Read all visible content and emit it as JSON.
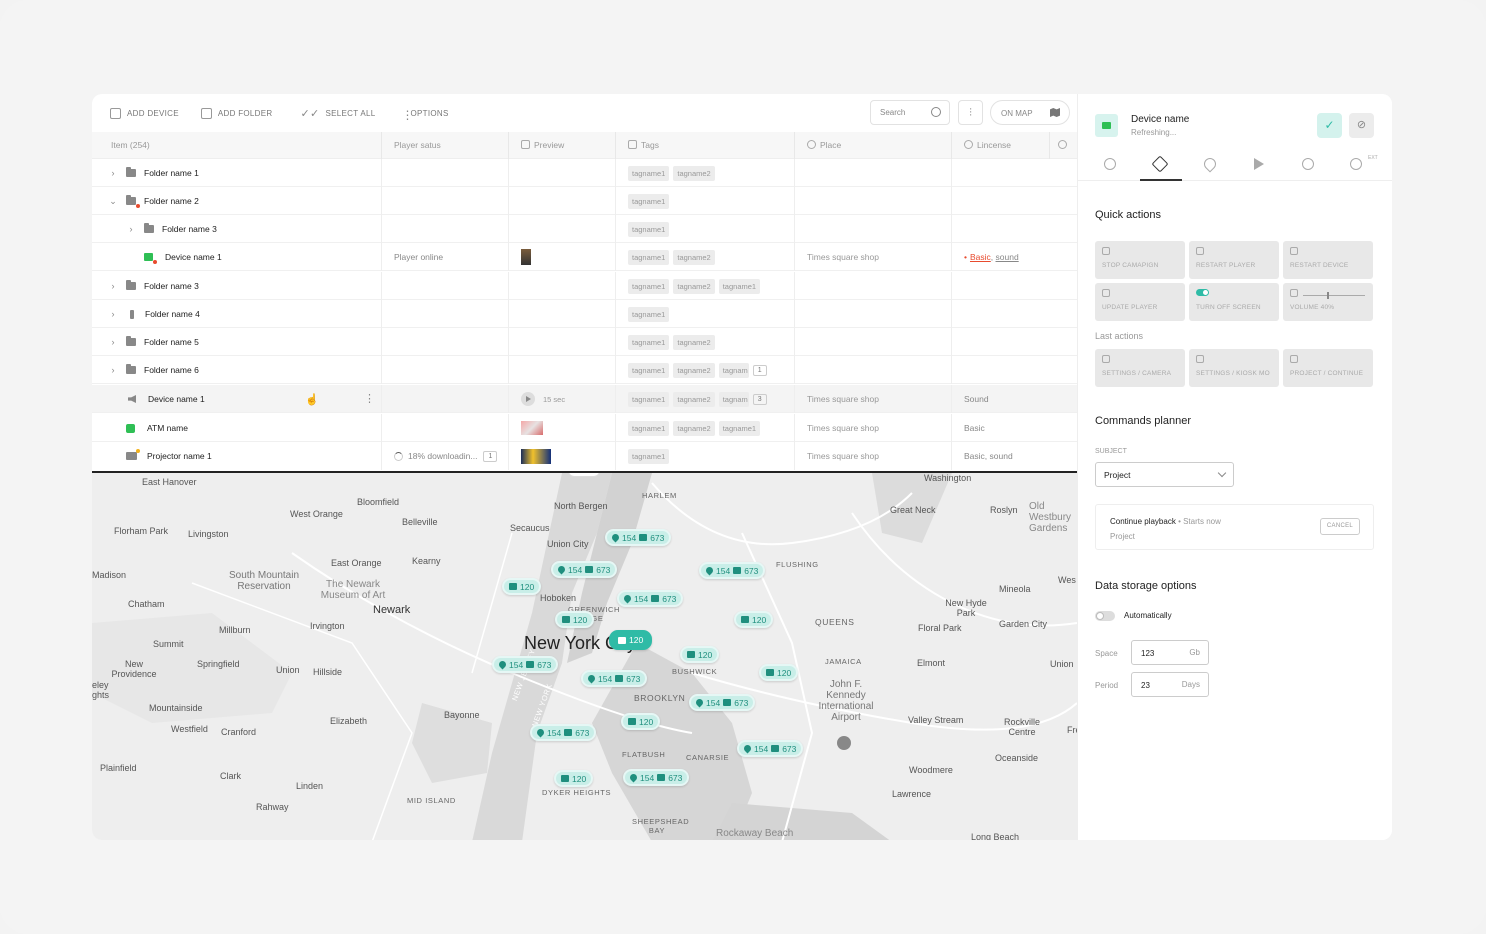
{
  "toolbar": {
    "add_device": "ADD DEVICE",
    "add_folder": "ADD FOLDER",
    "select_all": "SELECT ALL",
    "options": "OPTIONS",
    "search_placeholder": "Search",
    "on_map": "ON MAP"
  },
  "table": {
    "headers": [
      "Item (254)",
      "Player satus",
      "Preview",
      "Tags",
      "Place",
      "Lincense"
    ],
    "rows": [
      {
        "name": "Folder name 1",
        "tags": [
          "tagname1",
          "tagname2"
        ]
      },
      {
        "name": "Folder name 2",
        "tags": [
          "tagname1"
        ]
      },
      {
        "name": "Folder name 3",
        "tags": [
          "tagname1"
        ]
      },
      {
        "name": "Device name 1",
        "status": "Player online",
        "tags": [
          "tagname1",
          "tagname2"
        ],
        "place": "Times square shop",
        "license_a": "Basic",
        "license_b": "sound"
      },
      {
        "name": "Folder name 3",
        "tags": [
          "tagname1",
          "tagname2",
          "tagname1"
        ]
      },
      {
        "name": "Folder name 4",
        "tags": [
          "tagname1"
        ]
      },
      {
        "name": "Folder name 5",
        "tags": [
          "tagname1",
          "tagname2"
        ]
      },
      {
        "name": "Folder name 6",
        "tags": [
          "tagname1",
          "tagname2",
          "tagnam"
        ],
        "count": "1"
      },
      {
        "name": "Device name 1",
        "preview": "15 sec",
        "tags": [
          "tagname1",
          "tagname2",
          "tagnam"
        ],
        "count": "3",
        "place": "Times square shop",
        "license": "Sound"
      },
      {
        "name": "ATM name",
        "tags": [
          "tagname1",
          "tagname2",
          "tagname1"
        ],
        "place": "Times square shop",
        "license": "Basic"
      },
      {
        "name": "Projector name 1",
        "status": "18% downloadin...",
        "status_count": "1",
        "tags": [
          "tagname1"
        ],
        "place": "Times square shop",
        "license": "Basic, sound"
      }
    ]
  },
  "map": {
    "labels": {
      "east_hanover": "East Hanover",
      "bloomfield": "Bloomfield",
      "west_orange": "West Orange",
      "belleville": "Belleville",
      "florham_park": "Florham Park",
      "livingston": "Livingston",
      "madison": "Madison",
      "chatham": "Chatham",
      "east_orange": "East Orange",
      "kearny": "Kearny",
      "south_mountain": "South Mountain Reservation",
      "newark_museum": "The Newark Museum of Art",
      "newark": "Newark",
      "summit": "Summit",
      "millburn": "Millburn",
      "irvington": "Irvington",
      "new_providence": "New Providence",
      "springfield": "Springfield",
      "union": "Union",
      "hillside": "Hillside",
      "mountainside": "Mountainside",
      "elizabeth": "Elizabeth",
      "westfield": "Westfield",
      "cranford": "Cranford",
      "plainfield": "Plainfield",
      "clark": "Clark",
      "linden": "Linden",
      "rahway": "Rahway",
      "north_bergen": "North Bergen",
      "secaucus": "Secaucus",
      "union_city": "Union City",
      "hoboken": "Hoboken",
      "harlem": "HARLEM",
      "new_york": "New York City",
      "bayonne": "Bayonne",
      "brooklyn": "BROOKLYN",
      "queens": "QUEENS",
      "flushing": "FLUSHING",
      "jamaica": "JAMAICA",
      "bushwick": "BUSHWICK",
      "flatbush": "FLATBUSH",
      "canarsie": "CANARSIE",
      "jfk": "John F. Kennedy International Airport",
      "great_neck": "Great Neck",
      "roslyn": "Roslyn",
      "old_westbury": "Old Westbury Gardens",
      "mineola": "Mineola",
      "new_hyde_park": "New Hyde Park",
      "floral_park": "Floral Park",
      "garden_city": "Garden City",
      "elmont": "Elmont",
      "valley_stream": "Valley Stream",
      "rockville_centre": "Rockville Centre",
      "oceanside": "Oceanside",
      "woodmere": "Woodmere",
      "lawrence": "Lawrence",
      "rockaway_beach": "Rockaway Beach",
      "long_beach": "Long Beach",
      "sheepshead_bay": "SHEEPSHEAD BAY",
      "dyker_heights": "DYKER HEIGHTS",
      "mid_island": "MID ISLAND",
      "washington": "Washington",
      "new_jersey": "NEW JERSEY",
      "new_york_state": "NEW YORK",
      "greenwich_village": "GREENWICH VILLAGE",
      "west": "Wes",
      "union_right": "Union",
      "fre": "Fre",
      "ley": "eley ghts"
    },
    "pins": [
      {
        "a": "154",
        "b": "673"
      },
      {
        "a": "154",
        "b": "673"
      },
      {
        "a": "154",
        "b": "673"
      },
      {
        "a": "154",
        "b": "673"
      },
      {
        "b": "120"
      },
      {
        "b": "120"
      },
      {
        "b": "120"
      },
      {
        "b": "120"
      },
      {
        "a": "154",
        "b": "673"
      },
      {
        "b": "120"
      },
      {
        "a": "154",
        "b": "673"
      },
      {
        "b": "120"
      },
      {
        "a": "154",
        "b": "673"
      },
      {
        "a": "154",
        "b": "673"
      },
      {
        "b": "120"
      },
      {
        "a": "154",
        "b": "673"
      },
      {
        "b": "120"
      },
      {
        "a": "154",
        "b": "673"
      }
    ]
  },
  "panel": {
    "device_name": "Device name",
    "device_status": "Refreshing...",
    "ext": "EXT",
    "quick_actions_title": "Quick actions",
    "quick_actions": [
      "STOP CAMAPIGN",
      "RESTART PLAYER",
      "RESTART DEVICE",
      "UPDATE PLAYER",
      "TURN OFF SCREEN",
      "VOLUME 40%"
    ],
    "volume_level": 0.4,
    "last_actions_title": "Last actions",
    "last_actions": [
      "SETTINGS / CAMERA",
      "SETTINGS / KIOSK MO",
      "PROJECT / CONTINUE"
    ],
    "commands_title": "Commands planner",
    "subject_label": "SUBJECT",
    "subject_value": "Project",
    "command_title": "Continue playback",
    "command_when": "• Starts now",
    "command_sub": "Project",
    "cancel": "CANCEL",
    "storage_title": "Data storage options",
    "auto_label": "Automatically",
    "space_label": "Space",
    "space_value": "123",
    "space_unit": "Gb",
    "period_label": "Period",
    "period_value": "23",
    "period_unit": "Days"
  },
  "colors": {
    "accent": "#2fbba6",
    "online": "#2fbf55",
    "alert": "#e84b2e"
  }
}
